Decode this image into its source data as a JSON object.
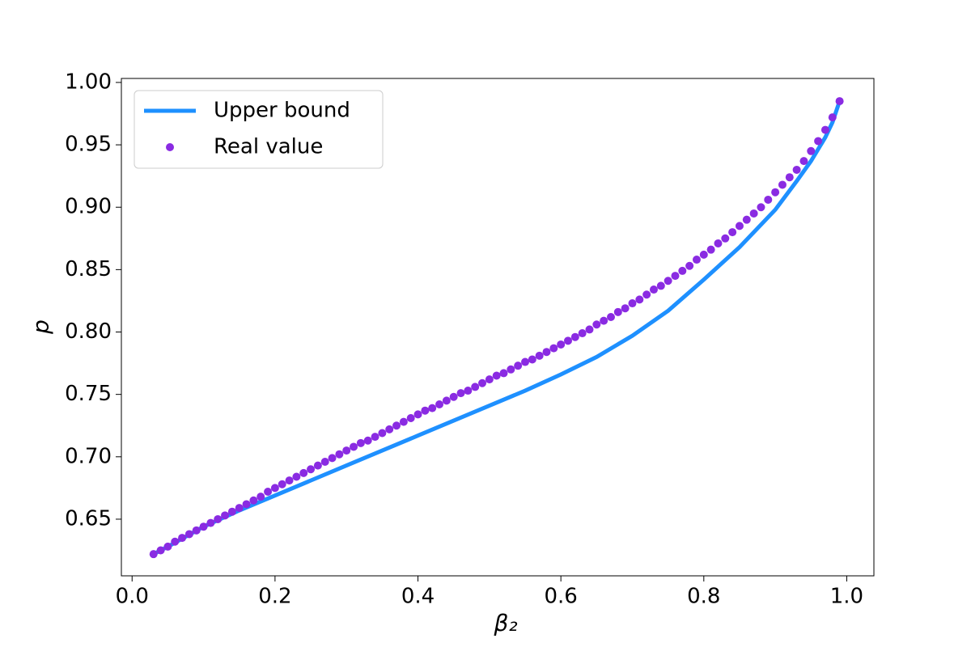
{
  "chart_data": {
    "type": "line",
    "xlabel": "β₂",
    "ylabel": "p",
    "xlim": [
      -0.015,
      1.038
    ],
    "ylim": [
      0.6046,
      1.0032
    ],
    "xticks": [
      {
        "value": 0,
        "label": "0.0"
      },
      {
        "value": 0.2,
        "label": "0.2"
      },
      {
        "value": 0.4,
        "label": "0.4"
      },
      {
        "value": 0.6,
        "label": "0.6"
      },
      {
        "value": 0.8,
        "label": "0.8"
      },
      {
        "value": 1,
        "label": "1.0"
      }
    ],
    "yticks": [
      0.65,
      {
        "value": 0.7,
        "label": "0.70"
      },
      0.75,
      {
        "value": 0.8,
        "label": "0.80"
      },
      0.85,
      {
        "value": 0.9,
        "label": "0.90"
      },
      0.95,
      {
        "value": 1,
        "label": "1.00"
      }
    ],
    "legend": "upper left",
    "series": [
      {
        "name": "Upper bound",
        "type": "line",
        "color": "#1e90ff",
        "x": [
          0.03,
          0.05,
          0.1,
          0.15,
          0.2,
          0.25,
          0.3,
          0.35,
          0.4,
          0.45,
          0.5,
          0.55,
          0.6,
          0.65,
          0.7,
          0.75,
          0.8,
          0.85,
          0.9,
          0.93,
          0.95,
          0.97,
          0.98,
          0.99
        ],
        "values": [
          0.622,
          0.628,
          0.644,
          0.657,
          0.669,
          0.681,
          0.693,
          0.705,
          0.717,
          0.729,
          0.741,
          0.753,
          0.766,
          0.78,
          0.797,
          0.817,
          0.842,
          0.868,
          0.898,
          0.921,
          0.937,
          0.956,
          0.968,
          0.985
        ]
      },
      {
        "name": "Real value",
        "type": "scatter",
        "color": "#8a2be2",
        "x": [
          0.03,
          0.04,
          0.05,
          0.06,
          0.07,
          0.08,
          0.09,
          0.1,
          0.11,
          0.12,
          0.13,
          0.14,
          0.15,
          0.16,
          0.17,
          0.18,
          0.19,
          0.2,
          0.21,
          0.22,
          0.23,
          0.24,
          0.25,
          0.26,
          0.27,
          0.28,
          0.29,
          0.3,
          0.31,
          0.32,
          0.33,
          0.34,
          0.35,
          0.36,
          0.37,
          0.38,
          0.39,
          0.4,
          0.41,
          0.42,
          0.43,
          0.44,
          0.45,
          0.46,
          0.47,
          0.48,
          0.49,
          0.5,
          0.51,
          0.52,
          0.53,
          0.54,
          0.55,
          0.56,
          0.57,
          0.58,
          0.59,
          0.6,
          0.61,
          0.62,
          0.63,
          0.64,
          0.65,
          0.66,
          0.67,
          0.68,
          0.69,
          0.7,
          0.71,
          0.72,
          0.73,
          0.74,
          0.75,
          0.76,
          0.77,
          0.78,
          0.79,
          0.8,
          0.81,
          0.82,
          0.83,
          0.84,
          0.85,
          0.86,
          0.87,
          0.88,
          0.89,
          0.9,
          0.91,
          0.92,
          0.93,
          0.94,
          0.95,
          0.96,
          0.97,
          0.98,
          0.99
        ],
        "values": [
          0.622,
          0.625,
          0.628,
          0.632,
          0.635,
          0.638,
          0.641,
          0.644,
          0.647,
          0.65,
          0.653,
          0.656,
          0.659,
          0.662,
          0.665,
          0.668,
          0.672,
          0.675,
          0.678,
          0.681,
          0.684,
          0.687,
          0.69,
          0.693,
          0.696,
          0.699,
          0.702,
          0.705,
          0.708,
          0.711,
          0.713,
          0.716,
          0.719,
          0.722,
          0.725,
          0.728,
          0.731,
          0.734,
          0.737,
          0.739,
          0.742,
          0.745,
          0.748,
          0.751,
          0.753,
          0.756,
          0.759,
          0.762,
          0.765,
          0.767,
          0.77,
          0.773,
          0.776,
          0.778,
          0.781,
          0.784,
          0.787,
          0.79,
          0.793,
          0.796,
          0.799,
          0.802,
          0.806,
          0.809,
          0.812,
          0.816,
          0.819,
          0.823,
          0.826,
          0.83,
          0.834,
          0.837,
          0.841,
          0.845,
          0.849,
          0.853,
          0.858,
          0.862,
          0.866,
          0.871,
          0.875,
          0.88,
          0.885,
          0.89,
          0.895,
          0.9,
          0.906,
          0.912,
          0.918,
          0.924,
          0.93,
          0.937,
          0.945,
          0.953,
          0.962,
          0.972,
          0.985
        ]
      }
    ]
  }
}
